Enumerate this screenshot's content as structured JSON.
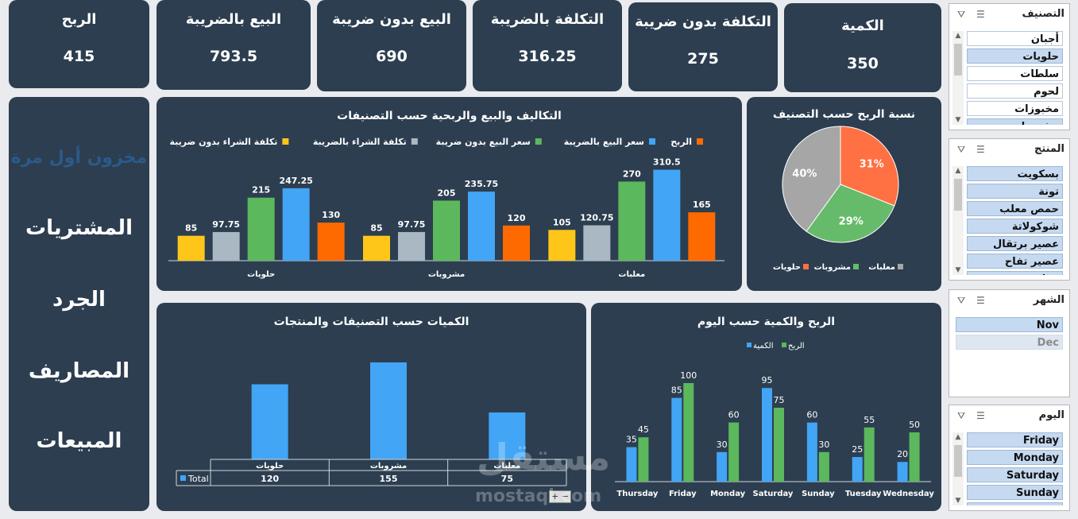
{
  "kpis": [
    {
      "title": "الربح",
      "value": "415"
    },
    {
      "title": "البيع بالضريبة",
      "value": "793.5"
    },
    {
      "title": "البيع بدون ضريبة",
      "value": "690"
    },
    {
      "title": "التكلفة بالضريبة",
      "value": "316.25"
    },
    {
      "title": "التكلفة بدون ضريبة",
      "value": "275"
    },
    {
      "title": "الكمية",
      "value": "350"
    }
  ],
  "nav": {
    "first_stock": "مخزون أول مرة",
    "purchases": "المشتريات",
    "inventory": "الجرد",
    "expenses": "المصاريف",
    "sales": "المبيعات"
  },
  "chart_data": [
    {
      "type": "bar",
      "title": "التكاليف والبيع والربحية حسب التصنيفات",
      "categories": [
        "حلويات",
        "مشروبات",
        "معلبات"
      ],
      "series": [
        {
          "name": "تكلفة الشراء بدون ضريبة",
          "color": "#ffc61a",
          "values": [
            85,
            85,
            105
          ],
          "labels": [
            "85",
            "85",
            "105"
          ]
        },
        {
          "name": "تكلفة الشراء بالضريبة",
          "color": "#a9b8c3",
          "values": [
            97.75,
            97.75,
            120.75
          ],
          "labels": [
            "97.75",
            "97.75",
            "120.75"
          ]
        },
        {
          "name": "سعر البيع بدون ضريبة",
          "color": "#5cb85c",
          "values": [
            215,
            205,
            270
          ],
          "labels": [
            "215",
            "205",
            "270"
          ]
        },
        {
          "name": "سعر البيع بالضريبة",
          "color": "#42a5f5",
          "values": [
            247.25,
            235.75,
            310.5
          ],
          "labels": [
            "247.25",
            "235.75",
            "310.5"
          ]
        },
        {
          "name": "الربح",
          "color": "#ff6a00",
          "values": [
            130,
            120,
            165
          ],
          "labels": [
            "130",
            "120",
            "165"
          ]
        }
      ],
      "ylim": [
        0,
        320
      ]
    },
    {
      "type": "pie",
      "title": "نسبة الربح حسب التصنيف",
      "slices": [
        {
          "name": "حلويات",
          "value": 31,
          "label": "31%",
          "color": "#ff7043"
        },
        {
          "name": "مشروبات",
          "value": 29,
          "label": "29%",
          "color": "#66bb6a"
        },
        {
          "name": "معلبات",
          "value": 40,
          "label": "40%",
          "color": "#a6a6a6"
        }
      ]
    },
    {
      "type": "bar",
      "title": "الكميات حسب التصنيفات والمنتجات",
      "categories": [
        "حلويات",
        "مشروبات",
        "معلبات"
      ],
      "series": [
        {
          "name": "Total",
          "color": "#42a5f5",
          "values": [
            120,
            155,
            75
          ],
          "labels": [
            "120",
            "155",
            "75"
          ]
        }
      ],
      "ylim": [
        0,
        160
      ]
    },
    {
      "type": "bar",
      "title": "الربح والكمية حسب اليوم",
      "categories": [
        "Thursday",
        "Friday",
        "Monday",
        "Saturday",
        "Sunday",
        "Tuesday",
        "Wednesday"
      ],
      "series": [
        {
          "name": "الكمية",
          "color": "#42a5f5",
          "values": [
            35,
            85,
            30,
            95,
            60,
            25,
            20
          ],
          "labels": [
            "35",
            "85",
            "30",
            "95",
            "60",
            "25",
            "20"
          ]
        },
        {
          "name": "الربح",
          "color": "#5cb85c",
          "values": [
            45,
            100,
            60,
            75,
            30,
            55,
            50
          ],
          "labels": [
            "45",
            "100",
            "60",
            "75",
            "30",
            "55",
            "50"
          ]
        }
      ],
      "ylim": [
        0,
        100
      ]
    }
  ],
  "table": {
    "row_label": "Total"
  },
  "slicers": {
    "category": {
      "title": "التصنيف",
      "items": [
        {
          "label": "أجبان",
          "selected": false
        },
        {
          "label": "حلويات",
          "selected": true
        },
        {
          "label": "سلطات",
          "selected": false
        },
        {
          "label": "لحوم",
          "selected": false
        },
        {
          "label": "مخبوزات",
          "selected": false
        },
        {
          "label": "مشروبات",
          "selected": true
        }
      ]
    },
    "product": {
      "title": "المنتج",
      "items": [
        {
          "label": "بسكويت",
          "selected": true
        },
        {
          "label": "تونة",
          "selected": true
        },
        {
          "label": "حمص معلب",
          "selected": true
        },
        {
          "label": "شوكولاتة",
          "selected": true
        },
        {
          "label": "عصير برتقال",
          "selected": true
        },
        {
          "label": "عصير تفاح",
          "selected": true
        },
        {
          "label": "فول مدمس",
          "selected": true
        }
      ]
    },
    "month": {
      "title": "الشهر",
      "items": [
        {
          "label": "Nov",
          "selected": true
        },
        {
          "label": "Dec",
          "selected": false
        }
      ]
    },
    "day": {
      "title": "اليوم",
      "items": [
        {
          "label": "Friday",
          "selected": true
        },
        {
          "label": "Monday",
          "selected": true
        },
        {
          "label": "Saturday",
          "selected": true
        },
        {
          "label": "Sunday",
          "selected": true
        },
        {
          "label": "Thursday",
          "selected": true
        }
      ]
    }
  },
  "watermark": {
    "arabic": "مستقل",
    "latin": "mostaql.com"
  },
  "colors": {
    "card": "#2c3e50",
    "bg": "#e9ebee"
  }
}
